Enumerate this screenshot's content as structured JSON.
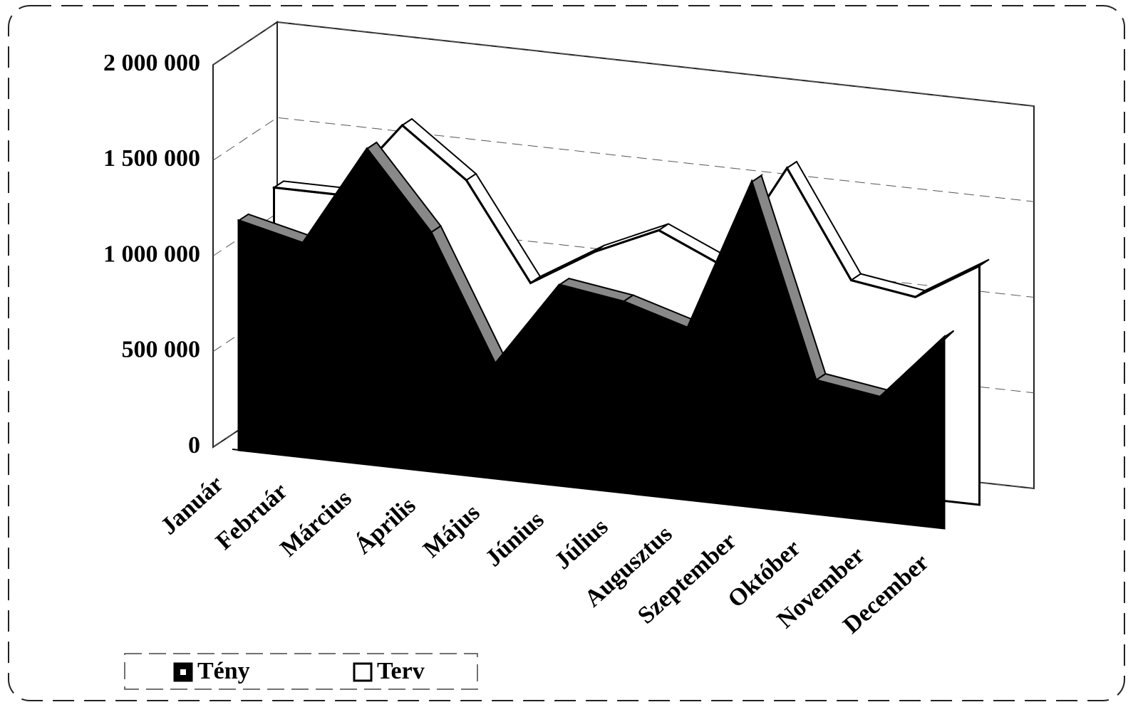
{
  "chart_data": {
    "type": "area3d",
    "categories": [
      "Január",
      "Február",
      "Március",
      "Április",
      "Május",
      "Június",
      "Július",
      "Augusztus",
      "Szeptember",
      "Október",
      "November",
      "December"
    ],
    "series": [
      {
        "name": "Terv",
        "color": "#ffffff",
        "values": [
          1250000,
          1250000,
          1650000,
          1400000,
          900000,
          1100000,
          1250000,
          1100000,
          1650000,
          1100000,
          1050000,
          1250000
        ]
      },
      {
        "name": "Tény",
        "color": "#000000",
        "values": [
          1200000,
          1120000,
          1650000,
          1250000,
          600000,
          1050000,
          1000000,
          900000,
          1700000,
          700000,
          650000,
          1000000
        ]
      }
    ],
    "ylim": [
      0,
      2000000
    ],
    "yticks": [
      0,
      {
        "value": 500000,
        "label": "500 000"
      },
      {
        "value": 1000000,
        "label": "1 000 000"
      },
      {
        "value": 1500000,
        "label": "1 500 000"
      },
      {
        "value": 2000000,
        "label": "2 000 000"
      }
    ],
    "grid": true,
    "legend": "bottom-left"
  }
}
